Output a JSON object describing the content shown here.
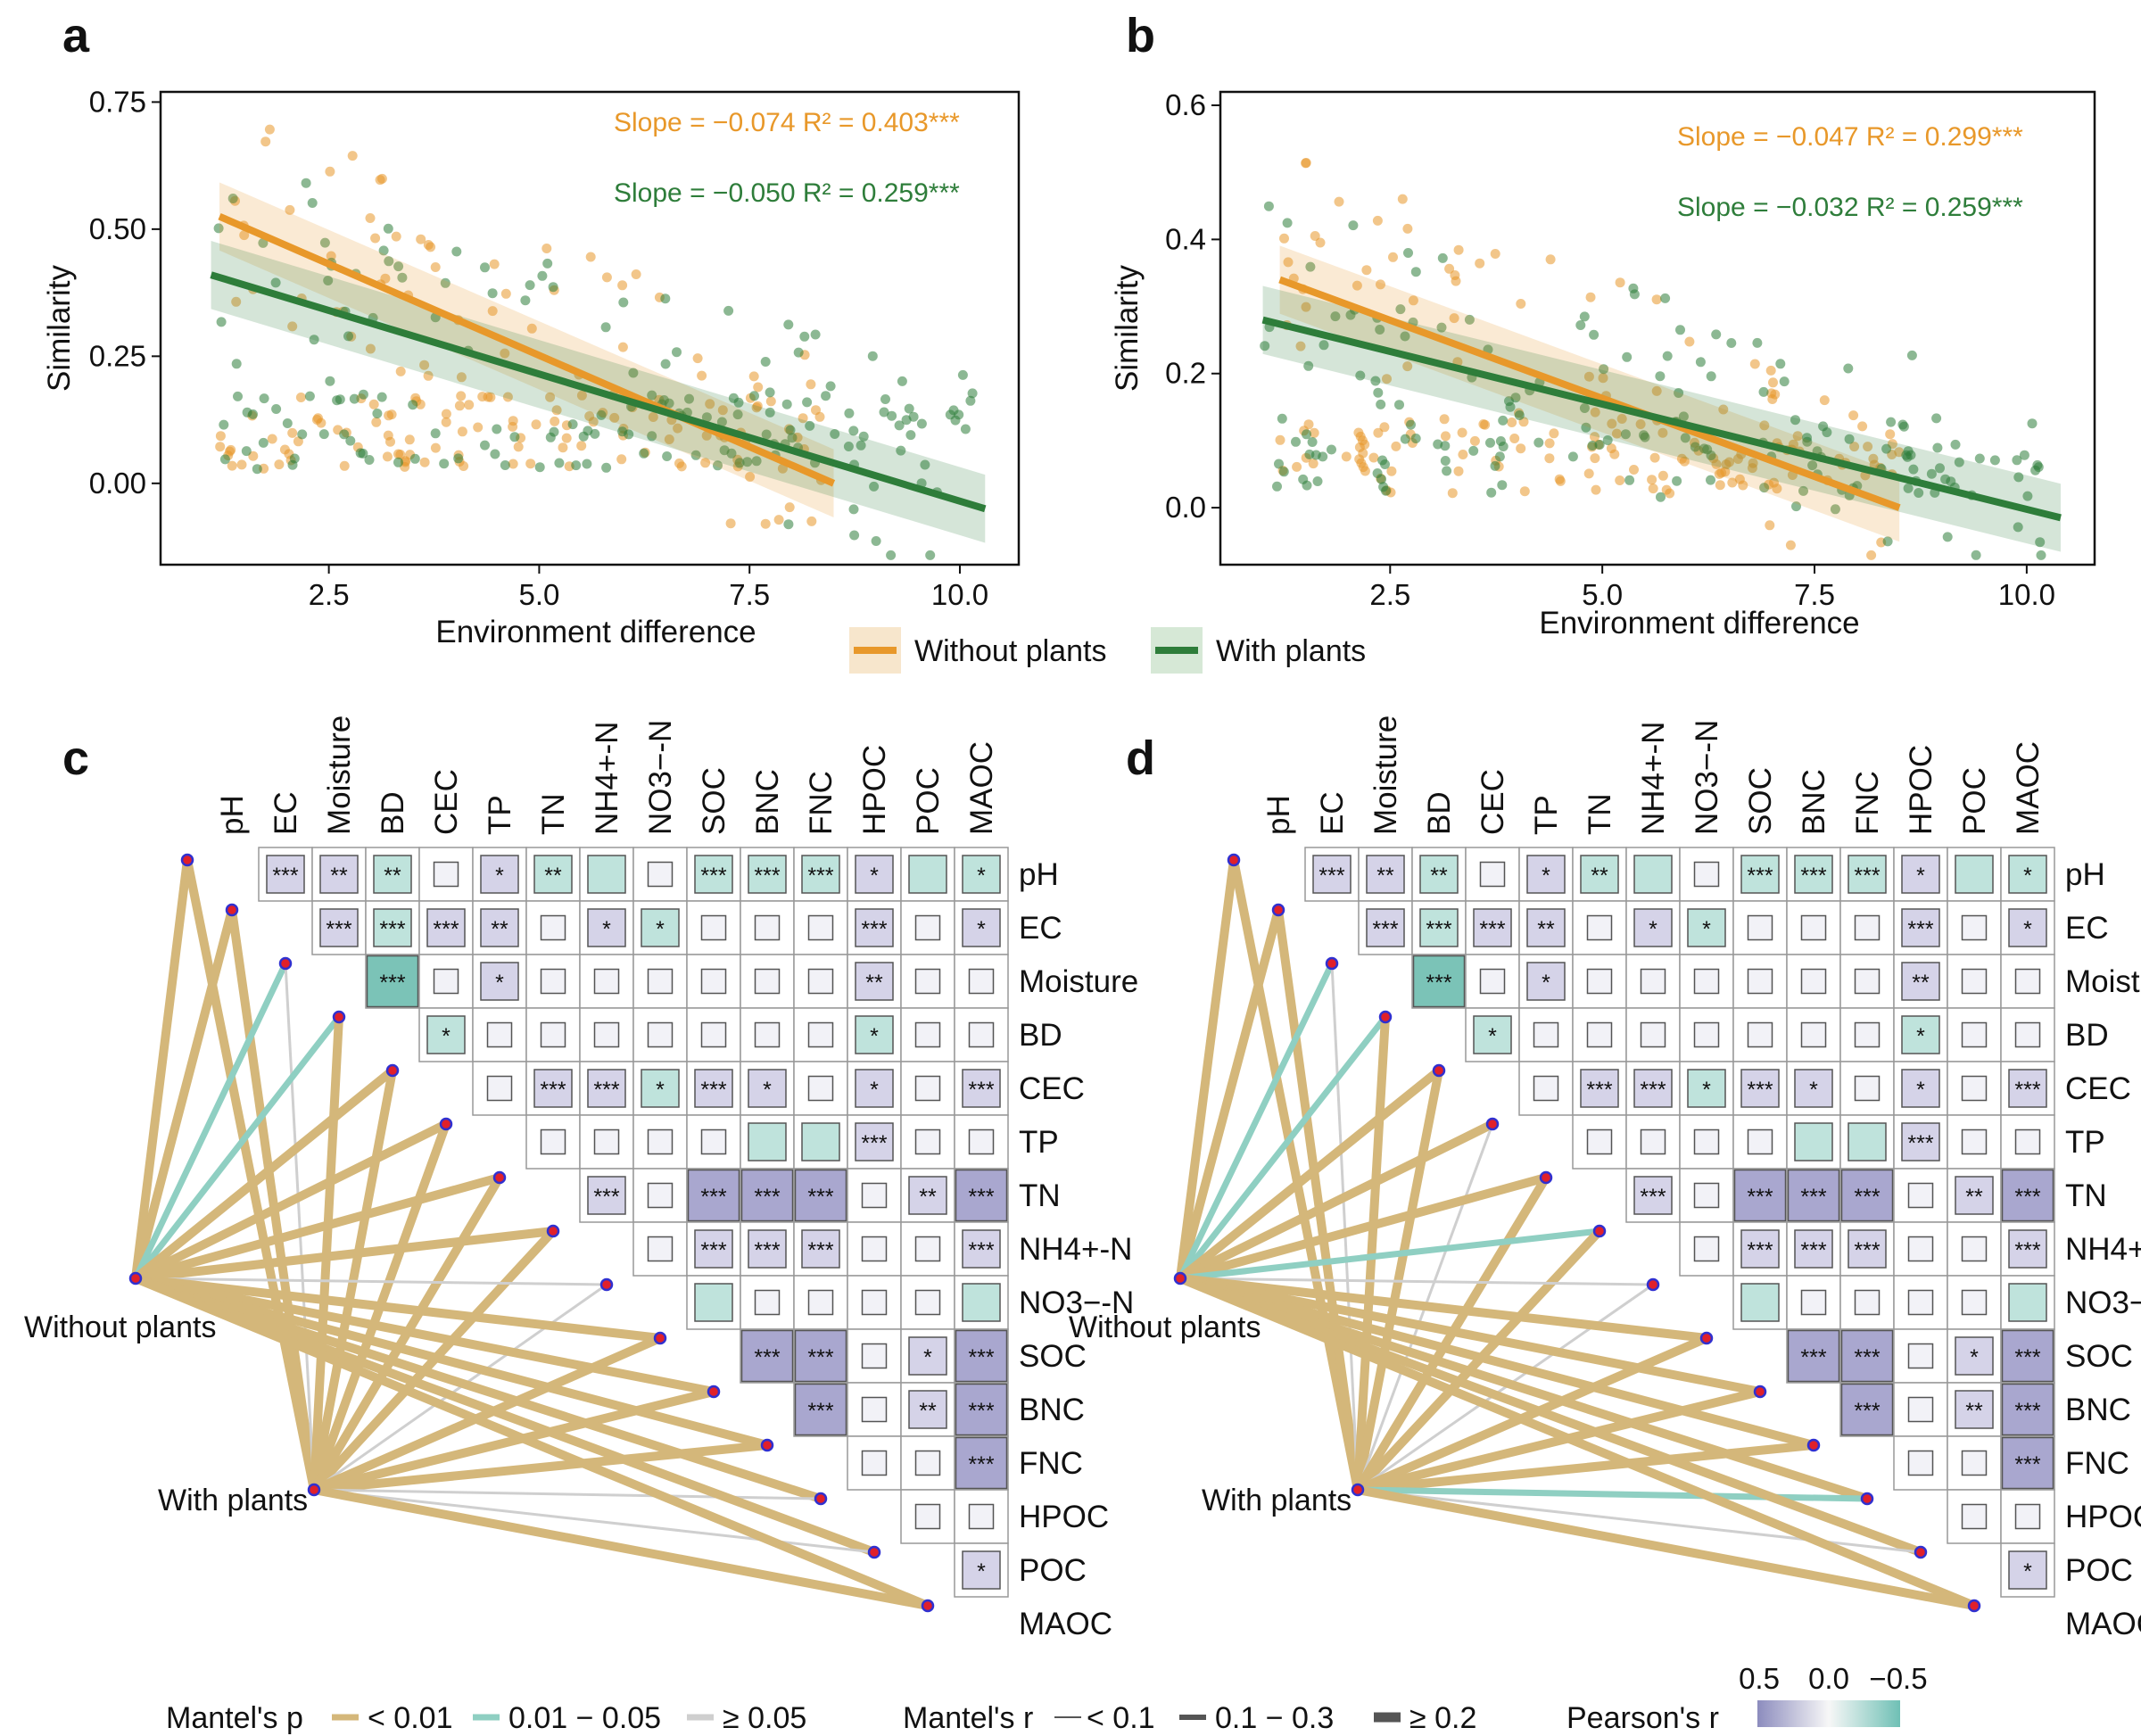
{
  "panels": [
    {
      "letter": "a",
      "xlabel": "Environment difference",
      "ylabel": "Similarity",
      "xticks": [
        "2.5",
        "5.0",
        "7.5",
        "10.0"
      ],
      "yticks": [
        "0.00",
        "0.25",
        "0.50",
        "0.75"
      ],
      "eq_without": "Slope = −0.074  R² = 0.403***",
      "eq_with": "Slope = −0.050  R² = 0.259***"
    },
    {
      "letter": "b",
      "xlabel": "Environment difference",
      "ylabel": "Similarity",
      "xticks": [
        "2.5",
        "5.0",
        "7.5",
        "10.0"
      ],
      "yticks": [
        "0.0",
        "0.2",
        "0.4",
        "0.6"
      ],
      "eq_without": "Slope = −0.047  R² = 0.299***",
      "eq_with": "Slope = −0.032  R² = 0.259***"
    },
    {
      "letter": "c"
    },
    {
      "letter": "d"
    }
  ],
  "legend_ab": {
    "without": "Without plants",
    "with": "With plants"
  },
  "matrix_labels": [
    "pH",
    "EC",
    "Moisture",
    "BD",
    "CEC",
    "TP",
    "TN",
    "NH4+-N",
    "NO3−-N",
    "SOC",
    "BNC",
    "FNC",
    "HPOC",
    "POC",
    "MAOC"
  ],
  "group_labels": {
    "without": "Without plants",
    "with": "With plants"
  },
  "legend_bottom": {
    "mantel_p_title": "Mantel's p",
    "p_levels": [
      "< 0.01",
      "0.01 − 0.05",
      "≥ 0.05"
    ],
    "mantel_r_title": "Mantel's r",
    "r_levels": [
      "< 0.1",
      "0.1 − 0.3",
      "≥ 0.2"
    ],
    "pearson_title": "Pearson's r",
    "pearson_ticks": [
      "0.5",
      "0.0",
      "−0.5"
    ]
  },
  "colors": {
    "without": "#E8982A",
    "with": "#2E7D3A",
    "sig": "#D4B77A",
    "mid": "#8FCFC2",
    "ns": "#CFCFCF",
    "pos": "#8C8CBE",
    "neg": "#6FC0B5"
  },
  "chart_data": [
    {
      "type": "scatter",
      "title": "a",
      "xlabel": "Environment difference",
      "ylabel": "Similarity",
      "xlim": [
        0.5,
        10.7
      ],
      "ylim": [
        -0.16,
        0.77
      ],
      "series": [
        {
          "name": "Without plants",
          "fit": {
            "x": [
              1.2,
              8.5
            ],
            "y": [
              0.525,
              0.0
            ],
            "slope": -0.074,
            "r2": 0.403
          }
        },
        {
          "name": "With plants",
          "fit": {
            "x": [
              1.1,
              10.3
            ],
            "y": [
              0.41,
              -0.05
            ],
            "slope": -0.05,
            "r2": 0.259
          }
        }
      ]
    },
    {
      "type": "scatter",
      "title": "b",
      "xlabel": "Environment difference",
      "ylabel": "Similarity",
      "xlim": [
        0.5,
        10.8
      ],
      "ylim": [
        -0.085,
        0.62
      ],
      "series": [
        {
          "name": "Without plants",
          "fit": {
            "x": [
              1.2,
              8.5
            ],
            "y": [
              0.34,
              0.0
            ],
            "slope": -0.047,
            "r2": 0.299
          }
        },
        {
          "name": "With plants",
          "fit": {
            "x": [
              1.0,
              10.4
            ],
            "y": [
              0.28,
              -0.015
            ],
            "slope": -0.032,
            "r2": 0.259
          }
        }
      ]
    }
  ]
}
